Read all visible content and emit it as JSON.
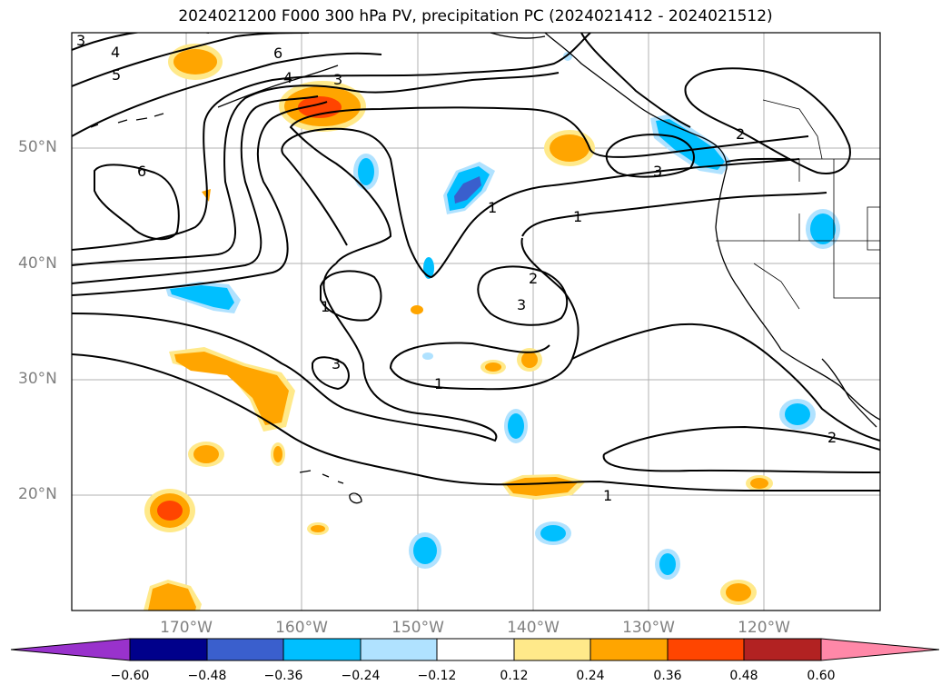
{
  "title": "2024021200 F000 300 hPa PV, precipitation PC (2024021412 - 2024021512)",
  "lat_labels": [
    "50°N",
    "40°N",
    "30°N",
    "20°N"
  ],
  "lon_labels": [
    "170°W",
    "160°W",
    "150°W",
    "140°W",
    "130°W",
    "120°W"
  ],
  "colorbar": {
    "ticks": [
      "−0.60",
      "−0.48",
      "−0.36",
      "−0.24",
      "−0.12",
      "0.12",
      "0.24",
      "0.36",
      "0.48",
      "0.60"
    ],
    "colors": [
      "#9932cc",
      "#00008b",
      "#3a5fcd",
      "#00bfff",
      "#b0e2ff",
      "#ffffff",
      "#ffe98a",
      "#ffa500",
      "#ff4500",
      "#b22222",
      "#ff88a8"
    ]
  },
  "contour_labels": [
    "3",
    "4",
    "5",
    "6",
    "4",
    "3",
    "6",
    "2",
    "3",
    "1",
    "1",
    "2",
    "3",
    "1",
    "1",
    "3",
    "2",
    "1"
  ],
  "colors": {
    "land_outline": "#000000",
    "grid": "#b0b0b0",
    "contour": "#000000"
  }
}
